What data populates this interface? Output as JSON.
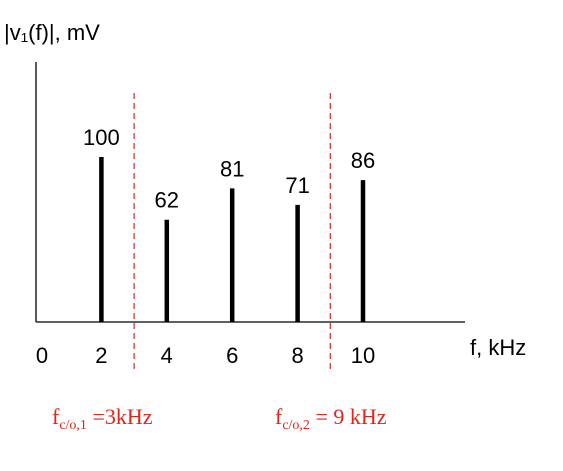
{
  "chart_data": {
    "type": "bar",
    "ylabel": "|v₁(f)|, mV",
    "xlabel": "f, kHz",
    "x": [
      2,
      4,
      6,
      8,
      10
    ],
    "values": [
      100,
      62,
      81,
      71,
      86
    ],
    "x_ticks": [
      "0",
      "2",
      "4",
      "6",
      "8",
      "10"
    ],
    "x_tick_values": [
      0,
      2,
      4,
      6,
      8,
      10
    ],
    "value_labels": [
      "100",
      "62",
      "81",
      "71",
      "86"
    ],
    "xlim": [
      0,
      13
    ],
    "ylim": [
      0,
      160
    ],
    "grid": false,
    "cutoffs": [
      {
        "value": 3,
        "label_main": "f",
        "label_sub": "c/o,1",
        "label_rest": " =3kHz"
      },
      {
        "value": 9,
        "label_main": "f",
        "label_sub": "c/o,2",
        "label_rest": " = 9 kHz"
      }
    ],
    "colors": {
      "bars": "#000000",
      "cutoff": "#e2231a",
      "axes": "#000000"
    }
  }
}
